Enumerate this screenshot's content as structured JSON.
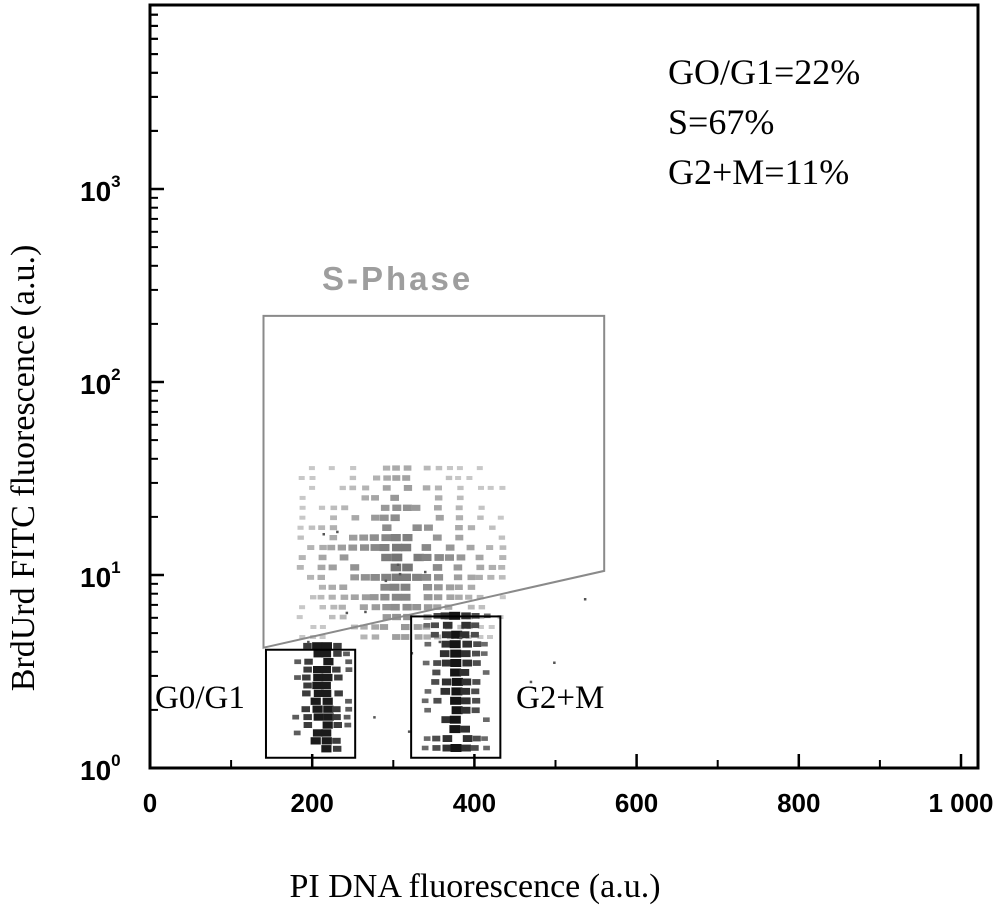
{
  "chart_data": {
    "type": "scatter",
    "xlabel": "PI DNA fluorescence (a.u.)",
    "ylabel": "BrdUrd FITC fluorescence (a.u.)",
    "x_scale": "linear",
    "y_scale": "log",
    "xlim": [
      0,
      1000
    ],
    "ylim": [
      1,
      10000
    ],
    "x_ticks": [
      0,
      200,
      400,
      600,
      800,
      1000
    ],
    "x_tick_labels": [
      "0",
      "200",
      "400",
      "600",
      "800",
      "1 000"
    ],
    "y_ticks": [
      1,
      10,
      100,
      1000
    ],
    "y_tick_labels": [
      {
        "base": "10",
        "exp": "0"
      },
      {
        "base": "10",
        "exp": "1"
      },
      {
        "base": "10",
        "exp": "2"
      },
      {
        "base": "10",
        "exp": "3"
      }
    ],
    "grid": false,
    "annotations": [
      "GO/G1=22%",
      "S=67%",
      "G2+M=11%"
    ],
    "gates": [
      {
        "label": "S-Phase",
        "polygon": [
          [
            140,
            4.2
          ],
          [
            560,
            10.5
          ],
          [
            560,
            220
          ],
          [
            140,
            220
          ]
        ]
      },
      {
        "label": "G0/G1",
        "rect": {
          "x": [
            143,
            253
          ],
          "y": [
            1.13,
            4.1
          ]
        }
      },
      {
        "label": "G2+M",
        "rect": {
          "x": [
            322,
            432
          ],
          "y": [
            1.13,
            6.1
          ]
        }
      }
    ],
    "populations": [
      {
        "name": "G0/G1 cluster",
        "x_range": [
          175,
          250
        ],
        "y_range": [
          1.2,
          4.5
        ]
      },
      {
        "name": "S-phase cluster",
        "x_range": [
          180,
          440
        ],
        "y_range": [
          4.5,
          38
        ]
      },
      {
        "name": "G2+M cluster",
        "x_range": [
          335,
          420
        ],
        "y_range": [
          1.2,
          6.5
        ]
      }
    ]
  }
}
